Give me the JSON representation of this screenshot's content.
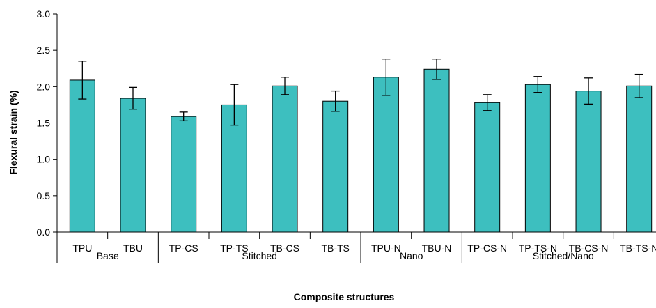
{
  "chart_data": {
    "type": "bar",
    "title": "",
    "xlabel": "Composite structures",
    "ylabel": "Flexural strain (%)",
    "ylim": [
      0,
      3.0
    ],
    "yticks": [
      "0.0",
      "0.5",
      "1.0",
      "1.5",
      "2.0",
      "2.5",
      "3.0"
    ],
    "grid": false,
    "legend": "none",
    "bar_color": "#3dbfbf",
    "categories": [
      "TPU",
      "TBU",
      "TP-CS",
      "TP-TS",
      "TB-CS",
      "TB-TS",
      "TPU-N",
      "TBU-N",
      "TP-CS-N",
      "TP-TS-N",
      "TB-CS-N",
      "TB-TS-N"
    ],
    "values": [
      2.09,
      1.84,
      1.59,
      1.75,
      2.01,
      1.8,
      2.13,
      2.24,
      1.78,
      2.03,
      1.94,
      2.01
    ],
    "error": [
      0.26,
      0.15,
      0.06,
      0.28,
      0.12,
      0.14,
      0.25,
      0.14,
      0.11,
      0.11,
      0.18,
      0.16
    ],
    "groups": [
      {
        "label": "Base",
        "count": 2
      },
      {
        "label": "Stitched",
        "count": 4
      },
      {
        "label": "Nano",
        "count": 2
      },
      {
        "label": "Stitched/Nano",
        "count": 4
      }
    ]
  }
}
